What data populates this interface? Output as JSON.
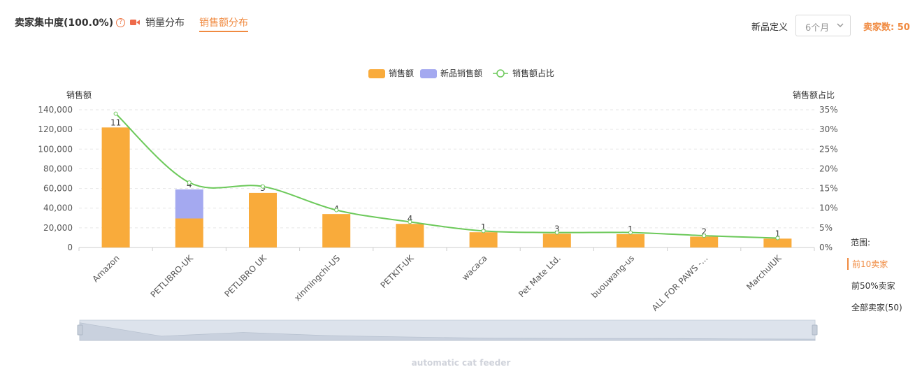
{
  "header": {
    "title": "卖家集中度(100.0%)",
    "tabs": [
      "销量分布",
      "销售额分布"
    ],
    "active_tab": 1,
    "new_product_label": "新品定义",
    "period_select": "6个月",
    "seller_count": "卖家数: 50"
  },
  "range": {
    "label": "范围:",
    "options": [
      "前10卖家",
      "前50%卖家",
      "全部卖家(50)"
    ],
    "active": 0
  },
  "watermark": "automatic cat feeder",
  "colors": {
    "sales": "#f9ab3b",
    "new_sales": "#a4a9f0",
    "share": "#6cc95a",
    "accent": "#f08a40"
  },
  "chart_data": {
    "type": "bar",
    "categories": [
      "Amazon",
      "PETLIBRO-UK",
      "PETLIBRO UK",
      "xinmingchi-US",
      "PETKIT-UK",
      "wacaca",
      "Pet Mate Ltd.",
      "buouwang-us",
      "ALL FOR PAWS -...",
      "MarchulUK"
    ],
    "legend": [
      "销售额",
      "新品销售额",
      "销售额占比"
    ],
    "ylabel": "销售额",
    "y2label": "销售额占比",
    "ylim": [
      0,
      140000
    ],
    "yticks": [
      "0",
      "20,000",
      "40,000",
      "60,000",
      "80,000",
      "100,000",
      "120,000",
      "140,000"
    ],
    "y2lim": [
      0,
      35
    ],
    "y2ticks": [
      "0%",
      "5%",
      "10%",
      "15%",
      "20%",
      "25%",
      "30%",
      "35%"
    ],
    "series": [
      {
        "name": "销售额",
        "type": "bar",
        "values": [
          122000,
          29500,
          55500,
          34000,
          24000,
          15500,
          14000,
          13500,
          11000,
          9000
        ]
      },
      {
        "name": "新品销售额",
        "type": "bar",
        "values": [
          0,
          29500,
          0,
          0,
          0,
          0,
          0,
          0,
          0,
          0
        ]
      },
      {
        "name": "销售额占比",
        "type": "line",
        "axis": "right",
        "values": [
          34,
          16.5,
          15.5,
          9.5,
          6.5,
          4.2,
          3.8,
          3.8,
          3.0,
          2.4
        ]
      }
    ],
    "bar_labels": [
      "11",
      "4",
      "3",
      "4",
      "4",
      "1",
      "3",
      "1",
      "2",
      "1"
    ],
    "grid": true
  }
}
